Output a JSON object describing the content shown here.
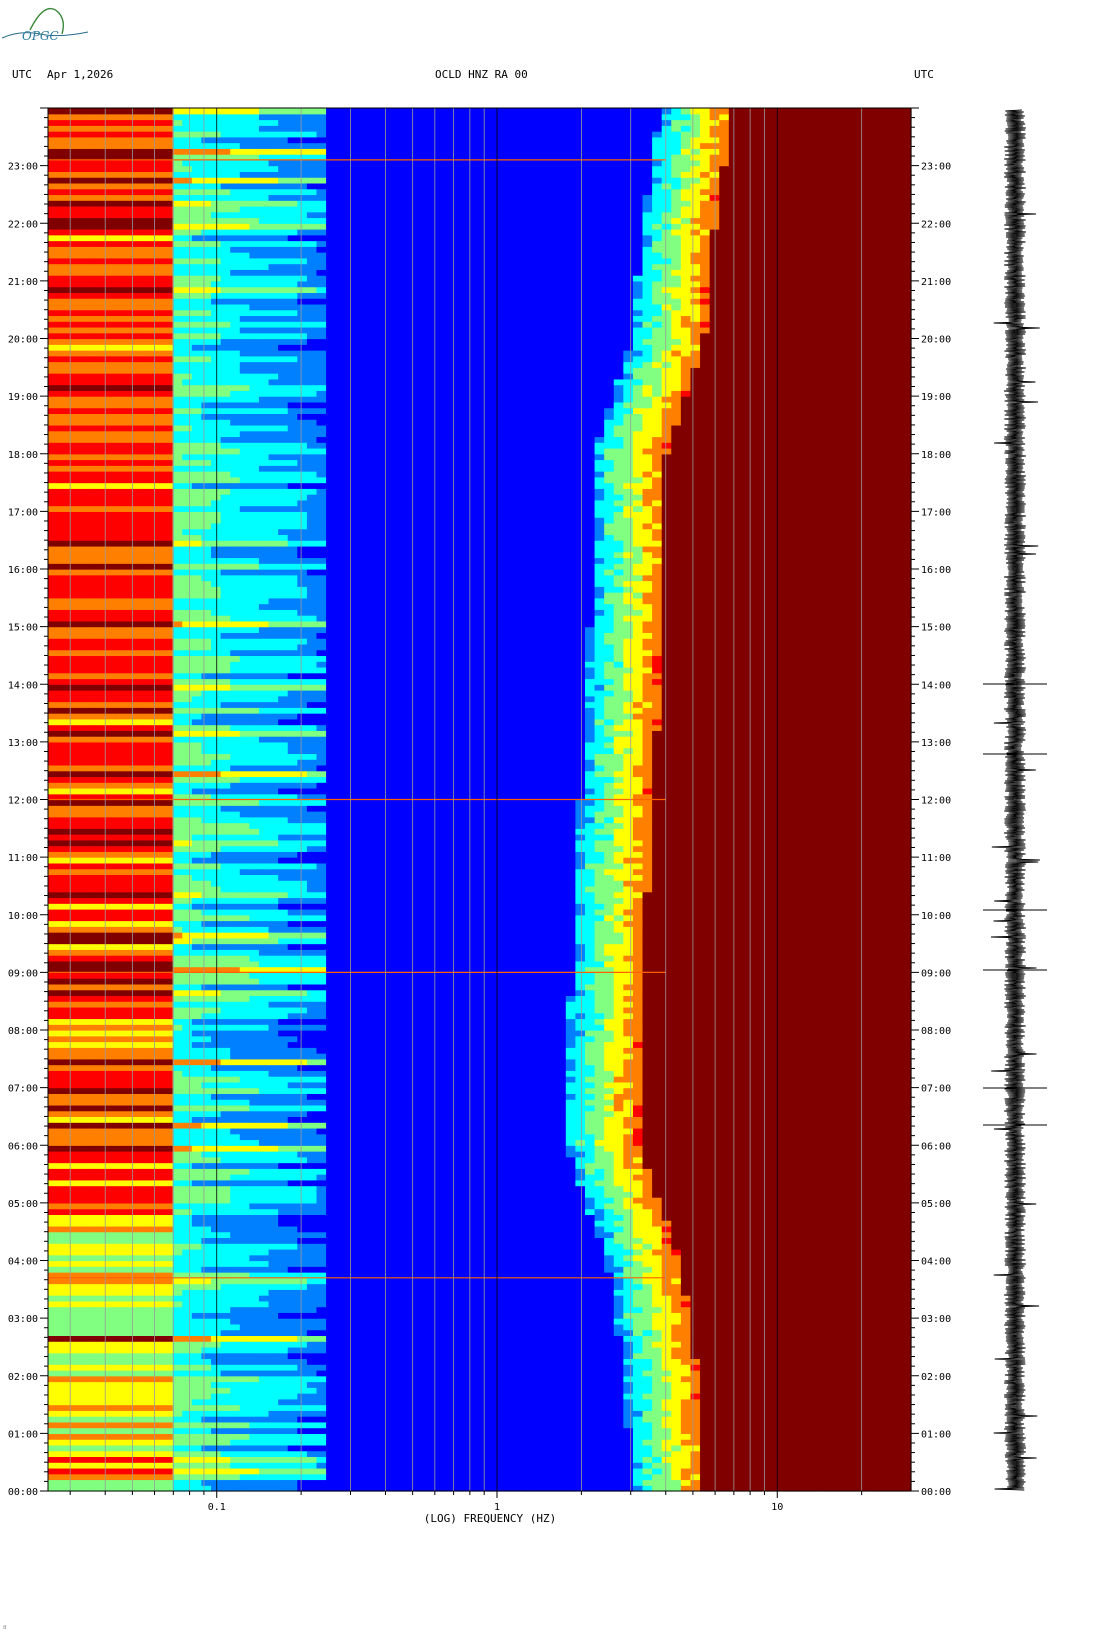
{
  "header": {
    "left_tz": "UTC",
    "date": "Apr 1,2026",
    "station": "OCLD HNZ RA 00",
    "right_tz": "UTC"
  },
  "logo": {
    "text": "OPGC"
  },
  "chart_data": {
    "type": "heatmap",
    "title": "OCLD HNZ RA 00",
    "xlabel": "(LOG) FREQUENCY (HZ)",
    "x_scale": "log",
    "xlim": [
      0.025,
      30
    ],
    "x_ticks": [
      {
        "value": 0.1,
        "label": "0.1"
      },
      {
        "value": 1,
        "label": "1"
      },
      {
        "value": 10,
        "label": "10"
      }
    ],
    "ylim_hours": [
      0,
      24
    ],
    "y_ticks": [
      "00:00",
      "01:00",
      "02:00",
      "03:00",
      "04:00",
      "05:00",
      "06:00",
      "07:00",
      "08:00",
      "09:00",
      "10:00",
      "11:00",
      "12:00",
      "13:00",
      "14:00",
      "15:00",
      "16:00",
      "17:00",
      "18:00",
      "19:00",
      "20:00",
      "21:00",
      "22:00",
      "23:00"
    ],
    "colormap": [
      "#00008f",
      "#0000ff",
      "#0080ff",
      "#00ffff",
      "#80ff80",
      "#ffff00",
      "#ff8000",
      "#ff0000",
      "#800000"
    ],
    "noise_edge_hz": [
      {
        "hour": 0,
        "freq": 5.5
      },
      {
        "hour": 2,
        "freq": 5.2
      },
      {
        "hour": 4,
        "freq": 4.5
      },
      {
        "hour": 6,
        "freq": 3.2
      },
      {
        "hour": 8,
        "freq": 3.3
      },
      {
        "hour": 10,
        "freq": 3.4
      },
      {
        "hour": 12,
        "freq": 3.6
      },
      {
        "hour": 14,
        "freq": 3.8
      },
      {
        "hour": 16,
        "freq": 4.0
      },
      {
        "hour": 18,
        "freq": 4.0
      },
      {
        "hour": 20,
        "freq": 5.5
      },
      {
        "hour": 22,
        "freq": 6.0
      },
      {
        "hour": 24,
        "freq": 7.0
      }
    ],
    "events_hours": [
      9.0,
      12.0,
      23.1,
      3.7
    ]
  }
}
